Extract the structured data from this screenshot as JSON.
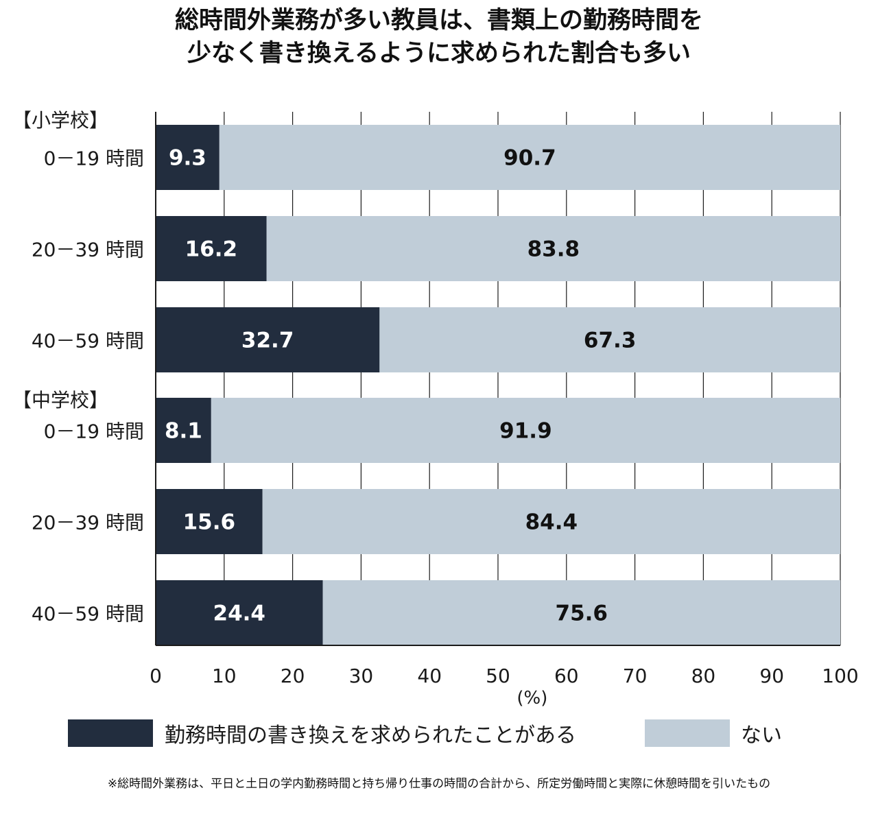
{
  "title": {
    "line1": "総時間外業務が多い教員は、書類上の勤務時間を",
    "line2": "少なく書き換えるように求められた割合も多い"
  },
  "chart_data": {
    "type": "bar",
    "orientation": "horizontal",
    "stacked": true,
    "groups": [
      {
        "label": "【小学校】",
        "categories": [
          "0－19 時間",
          "20－39 時間",
          "40－59 時間"
        ]
      },
      {
        "label": "【中学校】",
        "categories": [
          "0－19 時間",
          "20－39 時間",
          "40－59 時間"
        ]
      }
    ],
    "categories": [
      "0－19 時間",
      "20－39 時間",
      "40－59 時間",
      "0－19 時間",
      "20－39 時間",
      "40－59 時間"
    ],
    "series": [
      {
        "name": "勤務時間の書き換えを求められたことがある",
        "color": "#222d3e",
        "values": [
          9.3,
          16.2,
          32.7,
          8.1,
          15.6,
          24.4
        ]
      },
      {
        "name": "ない",
        "color": "#c0cdd8",
        "values": [
          90.7,
          83.8,
          67.3,
          91.9,
          84.4,
          75.6
        ]
      }
    ],
    "xlim": [
      0,
      100
    ],
    "xticks": [
      0,
      10,
      20,
      30,
      40,
      50,
      60,
      70,
      80,
      90,
      100
    ],
    "xlabel": "(%)",
    "grid": "vertical",
    "legend": "bottom"
  },
  "footnote": "※総時間外業務は、平日と土日の学内勤務時間と持ち帰り仕事の時間の合計から、所定労働時間と実際に休憩時間を引いたもの"
}
